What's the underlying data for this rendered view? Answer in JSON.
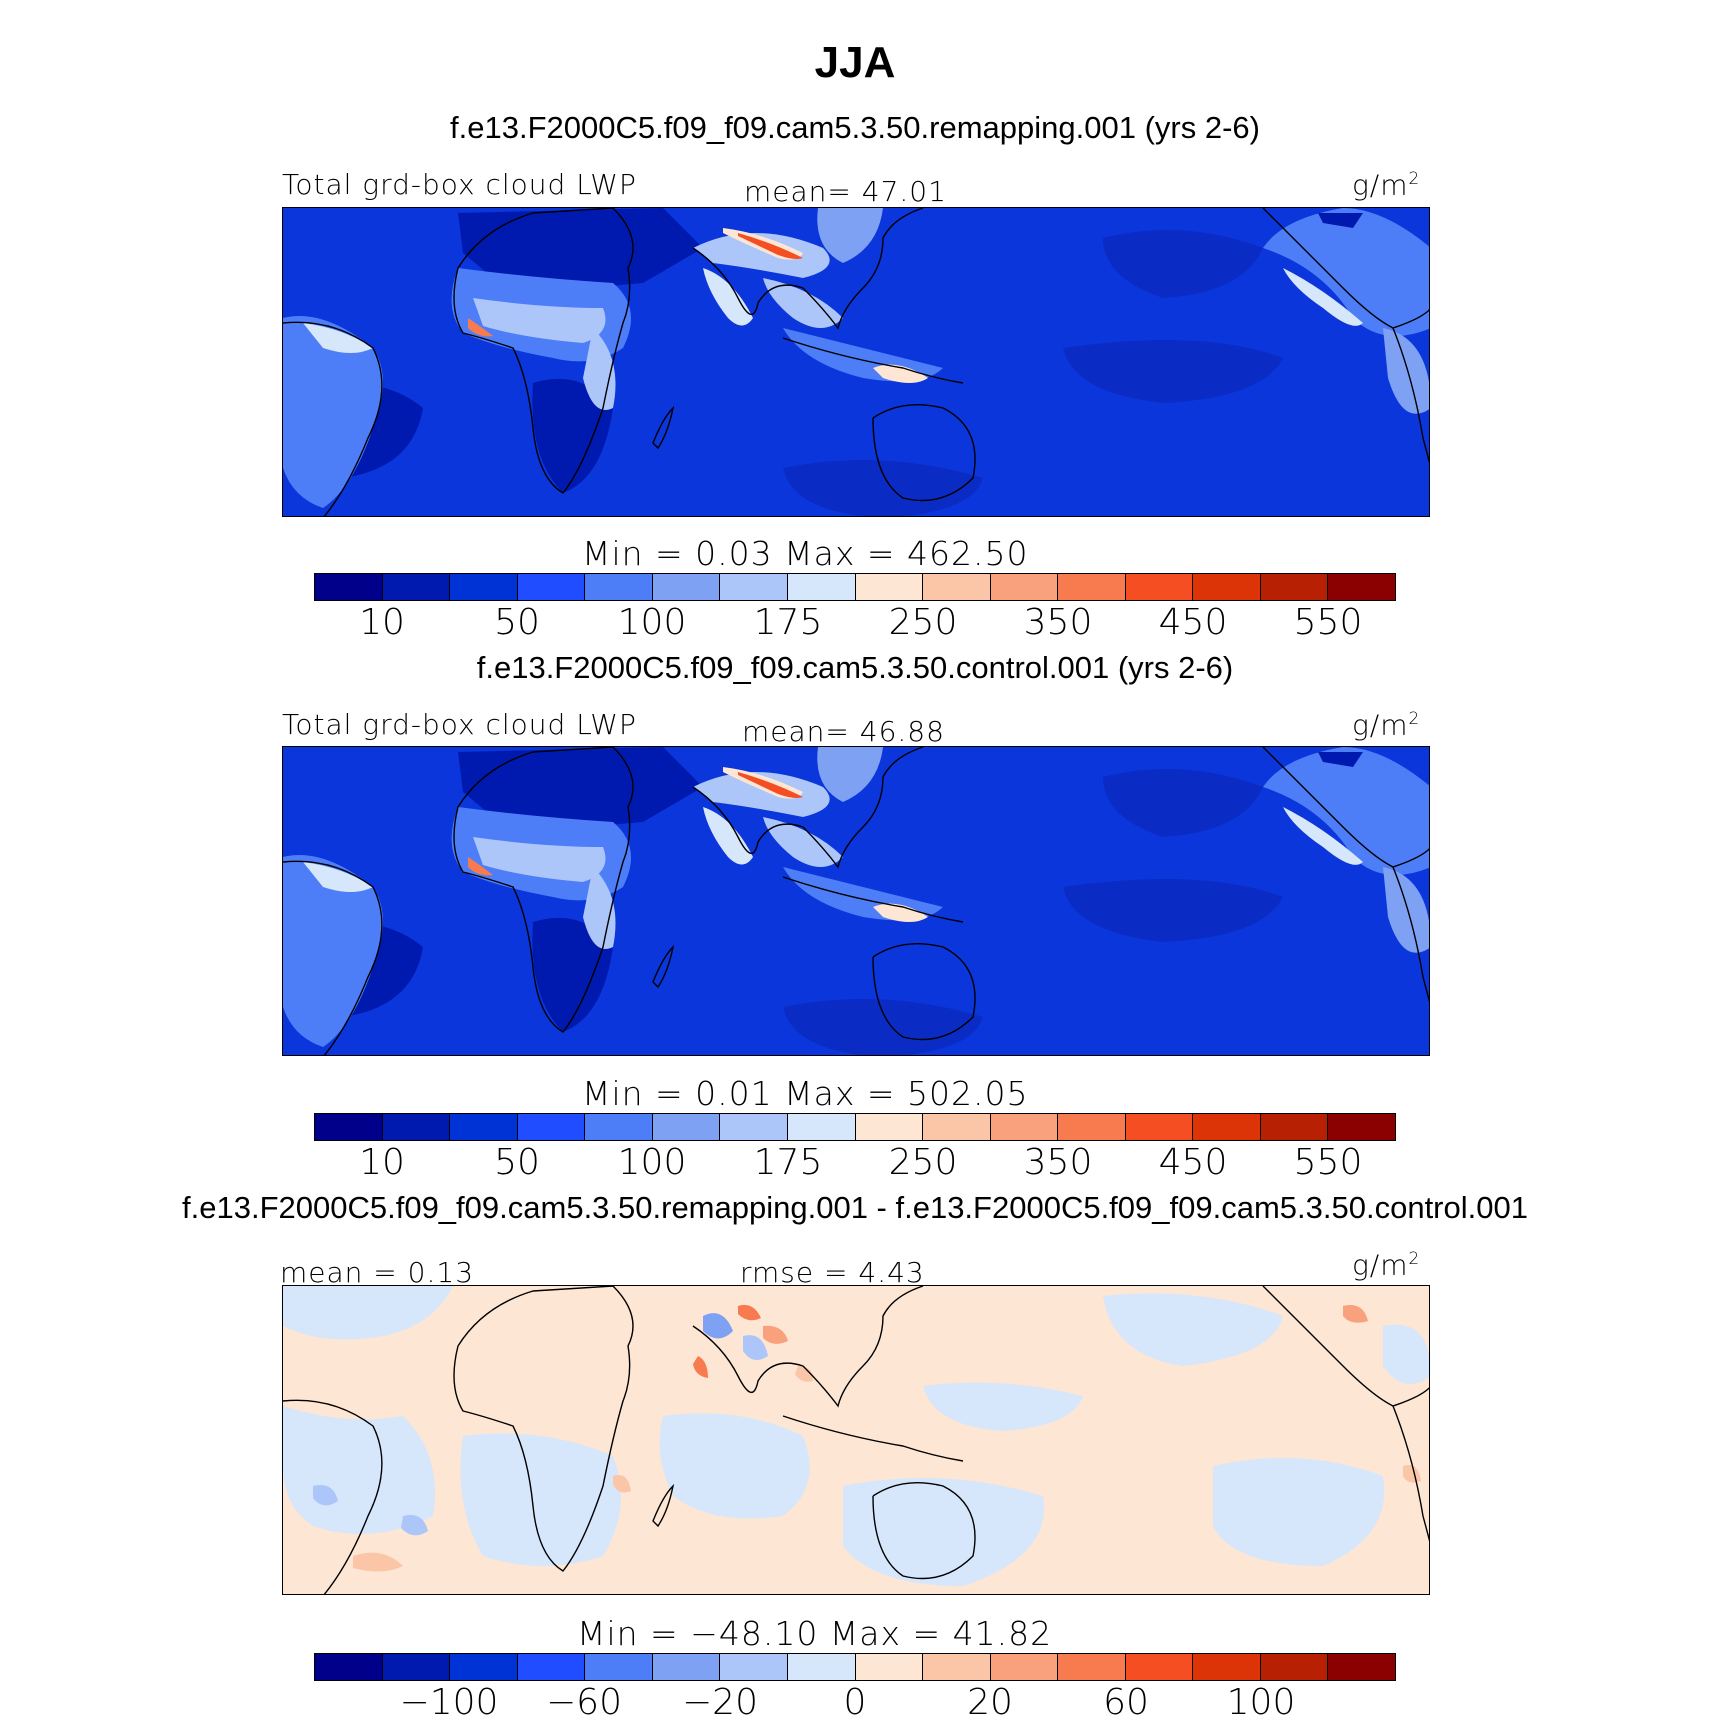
{
  "season": "JJA",
  "colors": {
    "palette": [
      "#00008b",
      "#001ab0",
      "#0033d6",
      "#1f4dff",
      "#4d7ef7",
      "#7ea1f4",
      "#adc6f9",
      "#d6e6fb",
      "#fde6d4",
      "#fbc6a8",
      "#f9a07c",
      "#f87a4f",
      "#f54e22",
      "#dc3406",
      "#b82003",
      "#8b0000"
    ],
    "ocean_test": "#0a36dc",
    "ocean_diff": "#d6e6fb"
  },
  "panels": [
    {
      "case_title": "f.e13.F2000C5.f09_f09.cam5.3.50.remapping.001 (yrs 2-6)",
      "variable": "Total grd-box cloud LWP",
      "stat_text": "mean=  47.01",
      "units": "g/m",
      "units_exp": "2",
      "minmax": "Min =    0.03  Max  = 462.50",
      "ticks": [
        "10",
        "50",
        "100",
        "175",
        "250",
        "350",
        "450",
        "550"
      ]
    },
    {
      "case_title": "f.e13.F2000C5.f09_f09.cam5.3.50.control.001 (yrs 2-6)",
      "variable": "Total grd-box cloud LWP",
      "stat_text": "mean=  46.88",
      "units": "g/m",
      "units_exp": "2",
      "minmax": "Min =    0.01  Max  = 502.05",
      "ticks": [
        "10",
        "50",
        "100",
        "175",
        "250",
        "350",
        "450",
        "550"
      ]
    },
    {
      "case_title": "f.e13.F2000C5.f09_f09.cam5.3.50.remapping.001 - f.e13.F2000C5.f09_f09.cam5.3.50.control.001",
      "variable": "mean =   0.13",
      "stat_text": "rmse =   4.43",
      "units": "g/m",
      "units_exp": "2",
      "minmax": "Min = −48.10  Max  =  41.82",
      "ticks": [
        "−100",
        "−60",
        "−20",
        "0",
        "20",
        "60",
        "100"
      ]
    }
  ]
}
